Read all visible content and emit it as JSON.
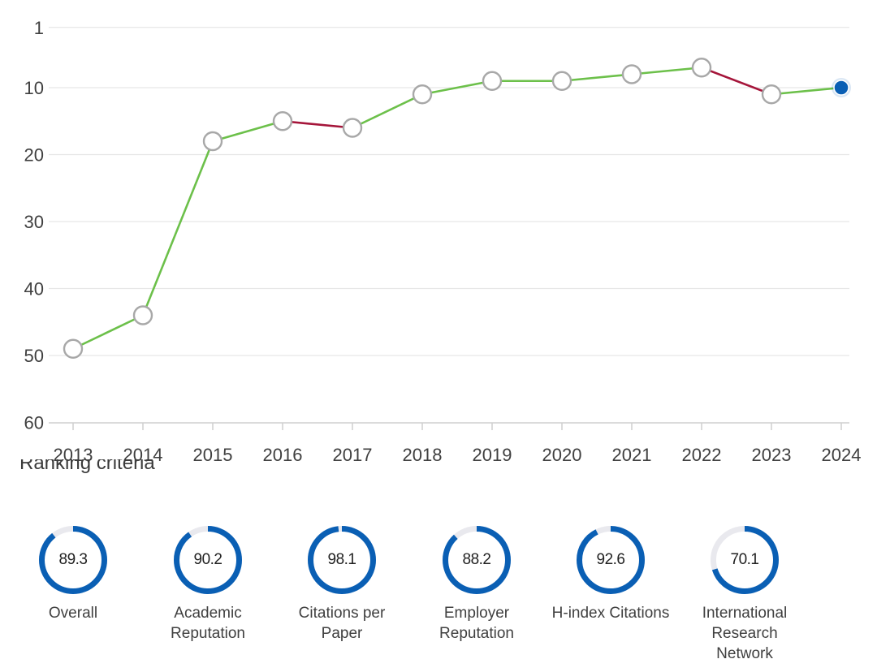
{
  "chart_data": {
    "type": "line",
    "x": [
      "2013",
      "2014",
      "2015",
      "2016",
      "2017",
      "2018",
      "2019",
      "2020",
      "2021",
      "2022",
      "2023",
      "2024"
    ],
    "y": [
      49,
      44,
      18,
      15,
      16,
      11,
      9,
      9,
      8,
      7,
      11,
      10
    ],
    "yticks": [
      1,
      10,
      20,
      30,
      40,
      50,
      60
    ],
    "ylim": [
      1,
      60
    ],
    "y_inverted": true,
    "grid": true,
    "colors": {
      "improve": "#6cc04a",
      "decline": "#a5153a",
      "marker_fill": "#ffffff",
      "marker_stroke": "#a8a8a8",
      "current": "#0a5fb4",
      "grid": "#e6e6e6"
    }
  },
  "section_heading": "Ranking criteria",
  "criteria": [
    {
      "value": "89.3",
      "label": "Overall"
    },
    {
      "value": "90.2",
      "label": "Academic Reputation"
    },
    {
      "value": "98.1",
      "label": "Citations per Paper"
    },
    {
      "value": "88.2",
      "label": "Employer Reputation"
    },
    {
      "value": "92.6",
      "label": "H-index Citations"
    },
    {
      "value": "70.1",
      "label": "International Research Network"
    }
  ],
  "gauge_colors": {
    "fill": "#0a5fb4",
    "track": "#e9e9ee"
  }
}
